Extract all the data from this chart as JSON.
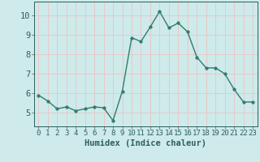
{
  "x": [
    0,
    1,
    2,
    3,
    4,
    5,
    6,
    7,
    8,
    9,
    10,
    11,
    12,
    13,
    14,
    15,
    16,
    17,
    18,
    19,
    20,
    21,
    22,
    23
  ],
  "y": [
    5.9,
    5.6,
    5.2,
    5.3,
    5.1,
    5.2,
    5.3,
    5.25,
    4.6,
    6.1,
    8.85,
    8.65,
    9.4,
    10.2,
    9.35,
    9.6,
    9.15,
    7.85,
    7.3,
    7.3,
    7.0,
    6.2,
    5.55,
    5.55
  ],
  "line_color": "#2e7d6e",
  "marker": "o",
  "marker_size": 2.5,
  "background_color": "#ceeaea",
  "grid_color": "#e8c8c8",
  "xlabel": "Humidex (Indice chaleur)",
  "ylim": [
    4.3,
    10.7
  ],
  "xlim": [
    -0.5,
    23.5
  ],
  "yticks": [
    5,
    6,
    7,
    8,
    9,
    10
  ],
  "xticks": [
    0,
    1,
    2,
    3,
    4,
    5,
    6,
    7,
    8,
    9,
    10,
    11,
    12,
    13,
    14,
    15,
    16,
    17,
    18,
    19,
    20,
    21,
    22,
    23
  ],
  "tick_color": "#2e5e5e",
  "label_fontsize": 7.5,
  "tick_fontsize": 6.5
}
